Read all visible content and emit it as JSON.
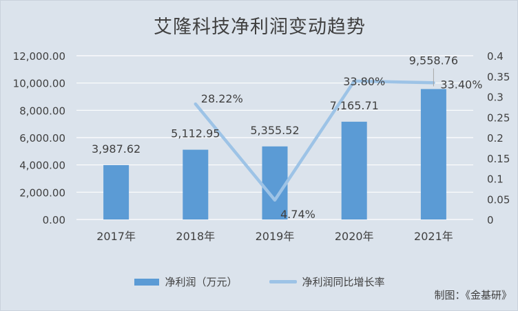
{
  "chart_data": {
    "type": "bar",
    "title": "艾隆科技净利润变动趋势",
    "categories": [
      "2017年",
      "2018年",
      "2019年",
      "2020年",
      "2021年"
    ],
    "series": [
      {
        "name": "净利润（万元）",
        "type": "bar",
        "axis": "left",
        "values": [
          3987.62,
          5112.95,
          5355.52,
          7165.71,
          9558.76
        ],
        "labels": [
          "3,987.62",
          "5,112.95",
          "5,355.52",
          "7,165.71",
          "9,558.76"
        ]
      },
      {
        "name": "净利润同比增长率",
        "type": "line",
        "axis": "right",
        "values": [
          null,
          0.2822,
          0.0474,
          0.338,
          0.334
        ],
        "labels": [
          "",
          "28.22%",
          "4.74%",
          "33.80%",
          "33.40%"
        ]
      }
    ],
    "y_left": {
      "lim": [
        0,
        12000
      ],
      "ticks": [
        "0.00",
        "2,000.00",
        "4,000.00",
        "6,000.00",
        "8,000.00",
        "10,000.00",
        "12,000.00"
      ]
    },
    "y_right": {
      "lim": [
        0,
        0.4
      ],
      "ticks": [
        "0",
        "0.05",
        "0.1",
        "0.15",
        "0.2",
        "0.25",
        "0.3",
        "0.35",
        "0.4"
      ]
    },
    "grid": true,
    "legend": "bottom",
    "colors": {
      "bar": "#5b9bd5",
      "line": "#9dc3e6",
      "grid": "#ffffff",
      "background": "#dbe3ec"
    }
  },
  "source_note": "制图：《金基研》"
}
